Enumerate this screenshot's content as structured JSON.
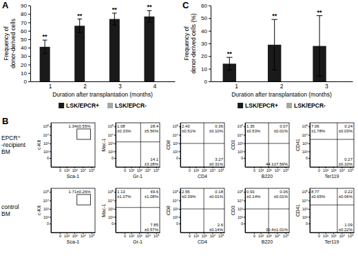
{
  "chart_data": [
    {
      "panel": "A",
      "type": "bar",
      "y_label": [
        "Frequency of",
        "donor-derived cells"
      ],
      "x_label": "Duration after transplantation (months)",
      "categories": [
        1,
        2,
        3,
        4
      ],
      "series": [
        {
          "name": "LSK/EPCR+",
          "color": "#1a1a1a",
          "values": [
            41,
            66,
            74,
            77
          ],
          "errors": [
            8,
            8,
            7,
            7
          ],
          "significance": [
            "**",
            "**",
            "**",
            "**"
          ]
        },
        {
          "name": "LSK/EPCR-",
          "color": "#a6a6a6",
          "values": [
            0,
            0,
            0,
            0
          ]
        }
      ],
      "ylim": [
        0,
        90
      ],
      "yticks": [
        0,
        10,
        20,
        30,
        40,
        50,
        60,
        70,
        80,
        90
      ],
      "legend": "bottom"
    },
    {
      "panel": "B",
      "type": "flow_grid",
      "log": true,
      "xlim": [
        -200,
        262144
      ],
      "ylim": [
        -200,
        262144
      ],
      "xticks": [
        0,
        {
          "value": 100,
          "label": "10²"
        },
        {
          "value": 1000,
          "label": "10³"
        },
        {
          "value": 10000,
          "label": "10⁴"
        },
        {
          "value": 100000,
          "label": "10⁵"
        }
      ],
      "yticks": [
        0,
        {
          "value": 100,
          "label": "10²"
        },
        {
          "value": 1000,
          "label": "10³"
        },
        {
          "value": 10000,
          "label": "10⁴"
        },
        {
          "value": 100000,
          "label": "10⁵"
        }
      ],
      "rows": [
        {
          "label": [
            "EPCR⁺",
            "-recipient",
            "BM"
          ],
          "plots": [
            {
              "y_label": "c-Kit",
              "x_label": "Sca-1",
              "gate": {
                "x": [
                  2000,
                  80000
                ],
                "y": [
                  3000,
                  50000
                ],
                "label": "1.34±0.55%"
              }
            },
            {
              "y_label": "Mac-1",
              "x_label": "Gr-1",
              "quadrant": {
                "x": 1500,
                "y": 1500
              },
              "labels": {
                "upper_left": [
                  "1.08",
                  "±0.33%"
                ],
                "upper_right": [
                  "28.4",
                  "±5.56%"
                ],
                "lower_right": [
                  "14.1",
                  "±3.28%"
                ]
              }
            },
            {
              "y_label": "CD8",
              "x_label": "CD4",
              "quadrant": {
                "x": 1000,
                "y": 1000
              },
              "labels": {
                "upper_left": [
                  "2.43",
                  "±0.51%"
                ],
                "upper_right": [
                  "0.36",
                  "±0.10%"
                ],
                "lower_right": [
                  "3.27",
                  "±0.31%"
                ]
              }
            },
            {
              "y_label": "CD3",
              "x_label": "B220",
              "quadrant": {
                "x": 1000,
                "y": 1000
              },
              "labels": {
                "upper_left": [
                  "1.35",
                  "±0.53%"
                ],
                "upper_right": [
                  "0.07",
                  "±0.01%"
                ],
                "lower_right": [
                  "44.1±7.59%"
                ]
              }
            },
            {
              "y_label": "CD41",
              "x_label": "Ter119",
              "quadrant": {
                "x": 3000,
                "y": 3000
              },
              "labels": {
                "upper_left": [
                  "7.06",
                  "±1.78%"
                ],
                "upper_right": [
                  "0.24",
                  "±0.03%"
                ],
                "lower_right": [
                  "0.27",
                  "±0.10%"
                ]
              }
            }
          ]
        },
        {
          "label": [
            "control",
            "BM"
          ],
          "plots": [
            {
              "y_label": "c-Kit",
              "x_label": "Sca-1",
              "gate": {
                "x": [
                  2000,
                  80000
                ],
                "y": [
                  3000,
                  50000
                ],
                "label": "1.71±0.26%"
              }
            },
            {
              "y_label": "Mac-1",
              "x_label": "Gr-1",
              "quadrant": {
                "x": 1500,
                "y": 1500
              },
              "labels": {
                "upper_left": [
                  "1.13",
                  "±1.07%"
                ],
                "upper_right": [
                  "49.6",
                  "±1.08%"
                ],
                "lower_right": [
                  "7.85",
                  "±0.57%"
                ]
              }
            },
            {
              "y_label": "CD8",
              "x_label": "CD4",
              "quadrant": {
                "x": 1000,
                "y": 1000
              },
              "labels": {
                "upper_left": [
                  "2.55",
                  "±0.39%"
                ],
                "upper_right": [
                  "0.18",
                  "±0.01%"
                ],
                "lower_right": [
                  "2.6",
                  "±0.14%"
                ]
              }
            },
            {
              "y_label": "CD3",
              "x_label": "B220",
              "quadrant": {
                "x": 1000,
                "y": 1000
              },
              "labels": {
                "upper_left": [
                  "0.93",
                  "±0.14%"
                ],
                "upper_right": [
                  "0.06",
                  "±0.01%"
                ],
                "lower_right": [
                  "30.4±1.01%"
                ]
              }
            },
            {
              "y_label": "CD41",
              "x_label": "Ter119",
              "quadrant": {
                "x": 3000,
                "y": 3000
              },
              "labels": {
                "upper_left": [
                  "8.77",
                  "±0.65%"
                ],
                "upper_right": [
                  "0.22",
                  "±0.06%"
                ],
                "lower_right": [
                  "1.09",
                  "±0.22%"
                ]
              }
            }
          ]
        }
      ]
    },
    {
      "panel": "C",
      "type": "bar",
      "y_label": [
        "Frequency of",
        "donor-derived cells (%)"
      ],
      "x_label": "Duration after transplantation (months)",
      "categories": [
        1,
        2,
        3
      ],
      "series": [
        {
          "name": "LSK/EPCR+",
          "color": "#1a1a1a",
          "values": [
            14,
            29,
            28
          ],
          "errors": [
            5,
            20,
            24
          ],
          "significance": [
            "**",
            "**",
            "**"
          ]
        },
        {
          "name": "LSK/EPCR-",
          "color": "#a6a6a6",
          "values": [
            0,
            0,
            0
          ]
        }
      ],
      "ylim": [
        0,
        60
      ],
      "yticks": [
        0,
        10,
        20,
        30,
        40,
        50,
        60
      ],
      "legend": "bottom"
    }
  ]
}
